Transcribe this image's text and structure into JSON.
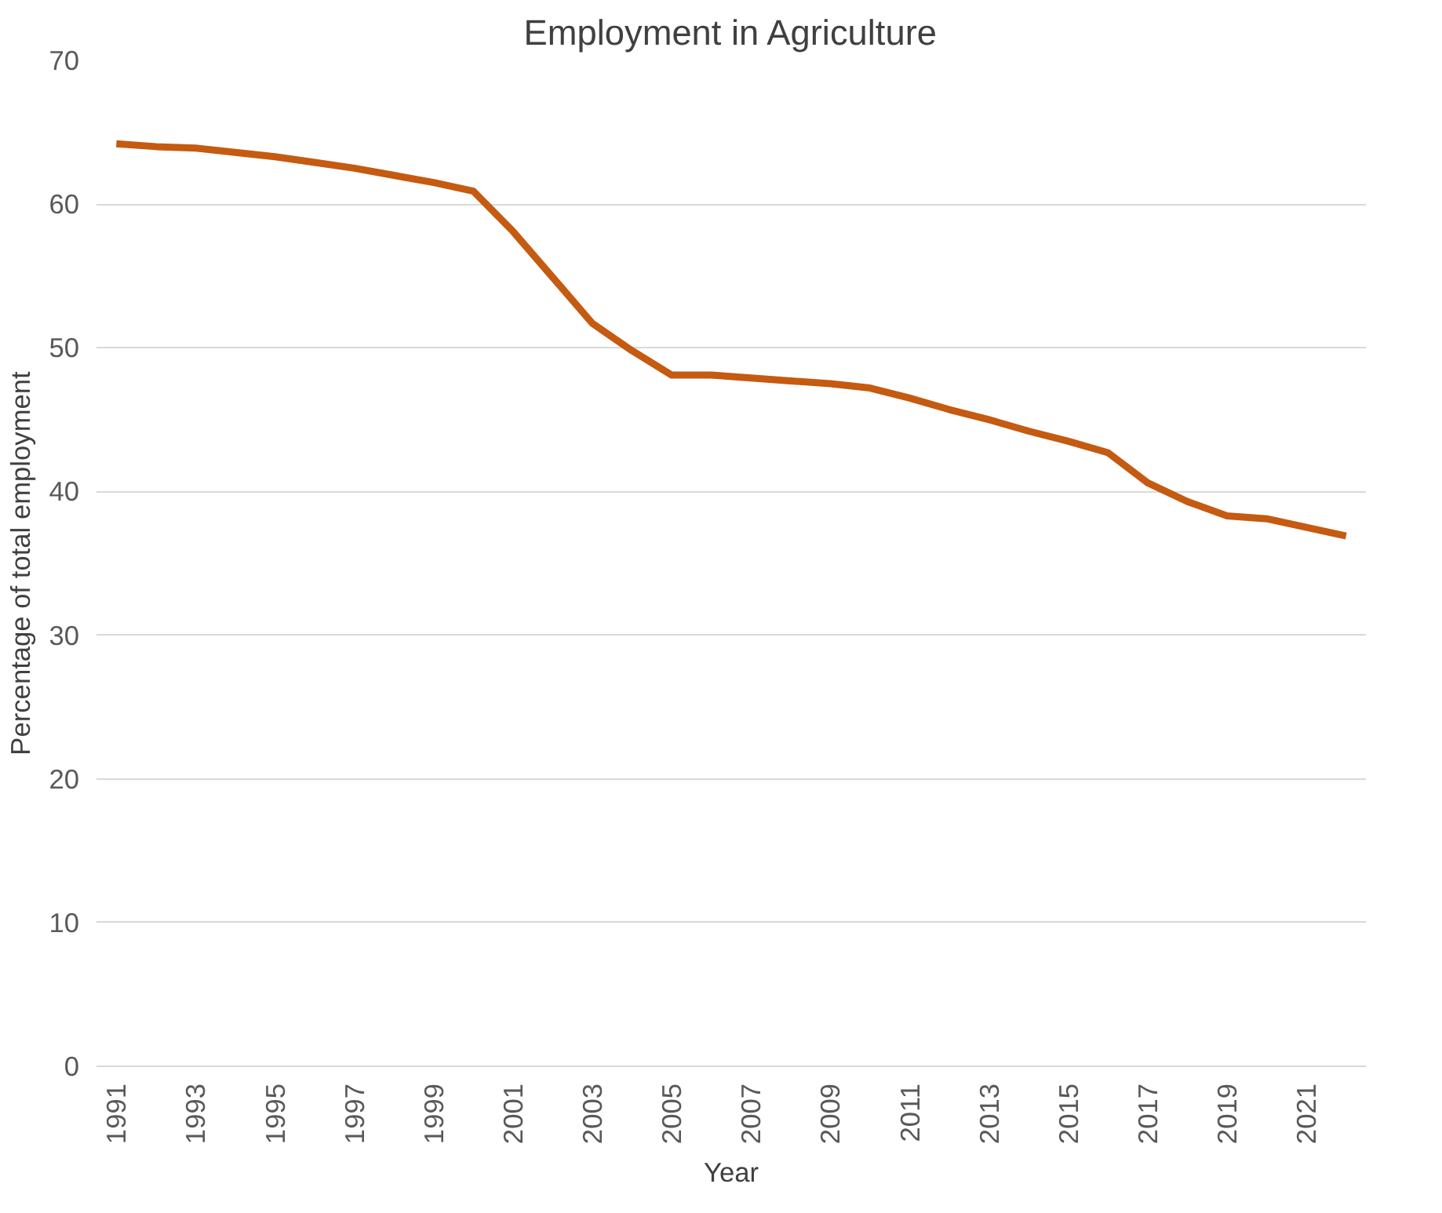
{
  "chart_data": {
    "type": "line",
    "title": "Employment in Agriculture",
    "xlabel": "Year",
    "ylabel": "Percentage of total employment",
    "categories": [
      "1991",
      null,
      "1993",
      null,
      "1995",
      null,
      "1997",
      null,
      "1999",
      null,
      "2001",
      null,
      "2003",
      null,
      "2005",
      null,
      "2007",
      null,
      "2009",
      null,
      "2011",
      null,
      "2013",
      null,
      "2015",
      null,
      "2017",
      null,
      "2019",
      null,
      "2021",
      null
    ],
    "series": [
      {
        "color": "#c55a11",
        "values": [
          64.2,
          64.0,
          63.9,
          63.6,
          63.3,
          62.9,
          62.5,
          62.0,
          61.5,
          60.9,
          58.1,
          54.9,
          51.7,
          49.8,
          48.1,
          48.1,
          47.9,
          47.7,
          47.5,
          47.2,
          46.5,
          45.7,
          45.0,
          44.2,
          43.5,
          42.7,
          40.6,
          39.3,
          38.3,
          38.1,
          37.5,
          36.9
        ]
      }
    ],
    "ylim": [
      0,
      70
    ],
    "yticks": [
      0,
      10,
      20,
      30,
      40,
      50,
      60,
      70
    ],
    "grid": "y",
    "marker": "none",
    "line_style": "solid"
  }
}
